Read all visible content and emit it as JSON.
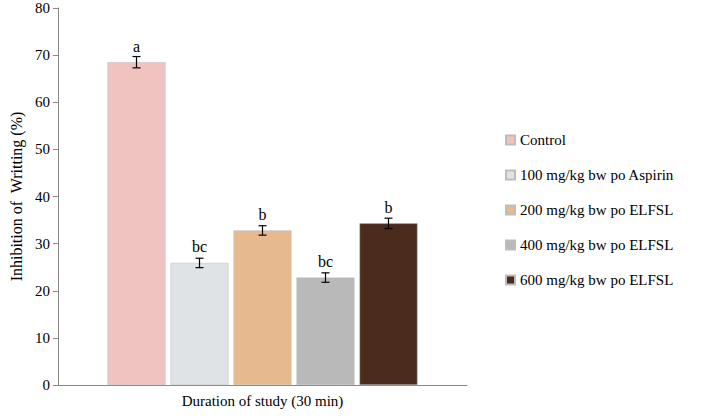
{
  "chart_data": {
    "type": "bar",
    "y_label": "Inhibition of  Writting (%)",
    "categories": [
      "Duration of study (30 min)"
    ],
    "series": [
      {
        "name": "Control",
        "color": "#f0c2c0",
        "values": [
          68.5
        ],
        "errors": [
          1.2
        ],
        "annotation": "a"
      },
      {
        "name": "100 mg/kg bw po Aspirin",
        "color": "#dfe3e6",
        "values": [
          25.9
        ],
        "errors": [
          1.0
        ],
        "annotation": "bc"
      },
      {
        "name": "200 mg/kg bw po ELFSL",
        "color": "#e6b98e",
        "values": [
          32.8
        ],
        "errors": [
          1.0
        ],
        "annotation": "b"
      },
      {
        "name": "400 mg/kg bw po ELFSL",
        "color": "#b9b9b9",
        "values": [
          22.8
        ],
        "errors": [
          1.0
        ],
        "annotation": "bc"
      },
      {
        "name": "600 mg/kg bw po ELFSL",
        "color": "#4a2b1d",
        "values": [
          34.3
        ],
        "errors": [
          1.1
        ],
        "annotation": "b"
      }
    ],
    "ylim": [
      0,
      80
    ],
    "yticks": [
      0,
      10,
      20,
      30,
      40,
      50,
      60,
      70,
      80
    ],
    "grid": false,
    "legend": "right"
  }
}
